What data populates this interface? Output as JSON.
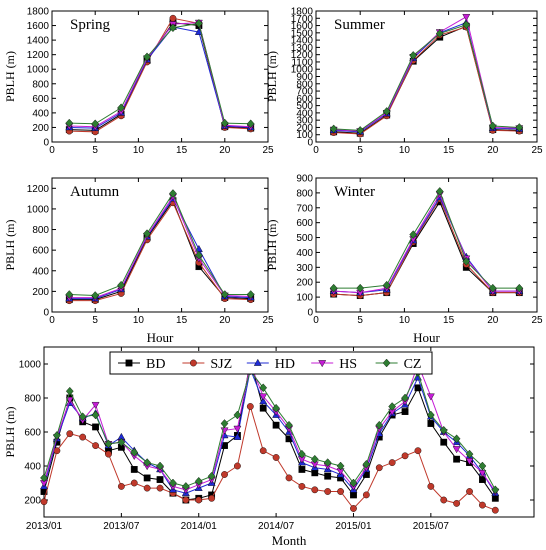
{
  "series_styles": [
    {
      "name": "BD",
      "color": "#000000",
      "marker": "square"
    },
    {
      "name": "SJZ",
      "color": "#c0392b",
      "marker": "circle"
    },
    {
      "name": "HD",
      "color": "#1f2bd6",
      "marker": "triangle-up"
    },
    {
      "name": "HS",
      "color": "#c51cd6",
      "marker": "triangle-down"
    },
    {
      "name": "CZ",
      "color": "#2e7d32",
      "marker": "diamond"
    }
  ],
  "chart_data": [
    {
      "type": "line",
      "title": "Spring",
      "ylabel": "PBLH (m)",
      "xlabel": "",
      "xlim": [
        0,
        25
      ],
      "ylim": [
        0,
        1800
      ],
      "xticks": [
        0,
        5,
        10,
        15,
        20,
        25
      ],
      "yticks": [
        0,
        200,
        400,
        600,
        800,
        1000,
        1200,
        1400,
        1600,
        1800
      ],
      "x": [
        2,
        5,
        8,
        11,
        14,
        17,
        20,
        23
      ],
      "series": [
        {
          "name": "BD",
          "values": [
            170,
            160,
            380,
            1120,
            1640,
            1600,
            210,
            190
          ]
        },
        {
          "name": "SJZ",
          "values": [
            150,
            140,
            360,
            1100,
            1700,
            1630,
            200,
            180
          ]
        },
        {
          "name": "HD",
          "values": [
            200,
            190,
            400,
            1130,
            1580,
            1510,
            220,
            200
          ]
        },
        {
          "name": "HS",
          "values": [
            220,
            210,
            420,
            1150,
            1620,
            1640,
            230,
            210
          ]
        },
        {
          "name": "CZ",
          "values": [
            260,
            250,
            470,
            1170,
            1570,
            1630,
            260,
            250
          ]
        }
      ]
    },
    {
      "type": "line",
      "title": "Summer",
      "ylabel": "PBLH (m)",
      "xlabel": "",
      "xlim": [
        0,
        25
      ],
      "ylim": [
        0,
        1800
      ],
      "xticks": [
        0,
        5,
        10,
        15,
        20,
        25
      ],
      "yticks": [
        0,
        100,
        200,
        300,
        400,
        500,
        600,
        700,
        800,
        900,
        1000,
        1100,
        1200,
        1300,
        1400,
        1500,
        1600,
        1700,
        1800
      ],
      "x": [
        2,
        5,
        8,
        11,
        14,
        17,
        20,
        23
      ],
      "series": [
        {
          "name": "BD",
          "values": [
            140,
            120,
            370,
            1110,
            1440,
            1590,
            170,
            160
          ]
        },
        {
          "name": "SJZ",
          "values": [
            130,
            110,
            360,
            1120,
            1470,
            1580,
            160,
            150
          ]
        },
        {
          "name": "HD",
          "values": [
            160,
            140,
            390,
            1150,
            1500,
            1640,
            190,
            180
          ]
        },
        {
          "name": "HS",
          "values": [
            170,
            150,
            400,
            1170,
            1510,
            1720,
            200,
            190
          ]
        },
        {
          "name": "CZ",
          "values": [
            180,
            160,
            420,
            1190,
            1490,
            1610,
            220,
            200
          ]
        }
      ]
    },
    {
      "type": "line",
      "title": "Autumn",
      "ylabel": "PBLH (m)",
      "xlabel": "Hour",
      "xlim": [
        0,
        25
      ],
      "ylim": [
        0,
        1300
      ],
      "xticks": [
        0,
        5,
        10,
        15,
        20,
        25
      ],
      "yticks": [
        0,
        200,
        400,
        600,
        800,
        1000,
        1200
      ],
      "x": [
        2,
        5,
        8,
        11,
        14,
        17,
        20,
        23
      ],
      "series": [
        {
          "name": "BD",
          "values": [
            120,
            120,
            200,
            720,
            1080,
            440,
            140,
            130
          ]
        },
        {
          "name": "SJZ",
          "values": [
            110,
            110,
            180,
            700,
            1060,
            480,
            130,
            120
          ]
        },
        {
          "name": "HD",
          "values": [
            130,
            130,
            220,
            730,
            1100,
            610,
            150,
            140
          ]
        },
        {
          "name": "HS",
          "values": [
            140,
            140,
            230,
            740,
            1120,
            520,
            160,
            150
          ]
        },
        {
          "name": "CZ",
          "values": [
            170,
            160,
            260,
            760,
            1150,
            550,
            170,
            170
          ]
        }
      ]
    },
    {
      "type": "line",
      "title": "Winter",
      "ylabel": "PBLH (m)",
      "xlabel": "Hour",
      "xlim": [
        0,
        25
      ],
      "ylim": [
        0,
        900
      ],
      "xticks": [
        0,
        5,
        10,
        15,
        20,
        25
      ],
      "yticks": [
        0,
        100,
        200,
        300,
        400,
        500,
        600,
        700,
        800,
        900
      ],
      "x": [
        2,
        5,
        8,
        11,
        14,
        17,
        20,
        23
      ],
      "series": [
        {
          "name": "BD",
          "values": [
            120,
            110,
            130,
            460,
            740,
            300,
            130,
            130
          ]
        },
        {
          "name": "SJZ",
          "values": [
            120,
            110,
            130,
            470,
            760,
            320,
            130,
            130
          ]
        },
        {
          "name": "HD",
          "values": [
            140,
            130,
            150,
            480,
            770,
            370,
            140,
            140
          ]
        },
        {
          "name": "HS",
          "values": [
            140,
            130,
            160,
            490,
            790,
            360,
            140,
            140
          ]
        },
        {
          "name": "CZ",
          "values": [
            160,
            160,
            180,
            520,
            810,
            340,
            160,
            160
          ]
        }
      ]
    },
    {
      "type": "line",
      "title": "",
      "ylabel": "PBLH (m)",
      "xlabel": "Month",
      "xlim": [
        0,
        38
      ],
      "ylim": [
        100,
        1100
      ],
      "xticks": [
        0,
        6,
        12,
        18,
        24,
        30
      ],
      "xticklabels": [
        "2013/01",
        "2013/07",
        "2014/01",
        "2014/07",
        "2015/01",
        "2015/07"
      ],
      "yticks": [
        200,
        400,
        600,
        800,
        1000
      ],
      "legend": [
        "BD",
        "SJZ",
        "HD",
        "HS",
        "CZ"
      ],
      "legend_position": "top",
      "x": [
        0,
        1,
        2,
        3,
        4,
        5,
        6,
        7,
        8,
        9,
        10,
        11,
        12,
        13,
        14,
        15,
        16,
        17,
        18,
        19,
        20,
        21,
        22,
        23,
        24,
        25,
        26,
        27,
        28,
        29,
        30,
        31,
        32,
        33,
        34,
        35
      ],
      "series": [
        {
          "name": "BD",
          "values": [
            250,
            540,
            800,
            660,
            630,
            490,
            510,
            380,
            330,
            320,
            240,
            200,
            210,
            230,
            520,
            580,
            1020,
            740,
            640,
            560,
            380,
            360,
            340,
            330,
            230,
            350,
            570,
            700,
            720,
            860,
            650,
            540,
            440,
            420,
            320,
            210
          ]
        },
        {
          "name": "SJZ",
          "values": [
            190,
            490,
            590,
            570,
            520,
            470,
            280,
            300,
            270,
            270,
            240,
            200,
            200,
            210,
            350,
            400,
            750,
            490,
            450,
            330,
            280,
            260,
            250,
            250,
            150,
            230,
            390,
            420,
            460,
            490,
            280,
            200,
            180,
            250,
            170,
            140
          ]
        },
        {
          "name": "HD",
          "values": [
            280,
            560,
            770,
            680,
            710,
            520,
            570,
            490,
            420,
            380,
            260,
            240,
            270,
            300,
            580,
            570,
            970,
            780,
            700,
            600,
            420,
            390,
            380,
            350,
            260,
            380,
            590,
            710,
            760,
            920,
            690,
            600,
            540,
            460,
            360,
            240
          ]
        },
        {
          "name": "HS",
          "values": [
            300,
            570,
            790,
            670,
            760,
            530,
            540,
            460,
            400,
            380,
            280,
            260,
            290,
            320,
            610,
            620,
            1000,
            810,
            720,
            620,
            440,
            410,
            400,
            370,
            280,
            390,
            620,
            720,
            780,
            1000,
            810,
            600,
            500,
            430,
            360,
            250
          ]
        },
        {
          "name": "CZ",
          "values": [
            330,
            580,
            840,
            690,
            700,
            530,
            540,
            480,
            420,
            400,
            300,
            280,
            310,
            340,
            650,
            700,
            960,
            860,
            740,
            640,
            470,
            440,
            420,
            400,
            300,
            410,
            640,
            750,
            800,
            950,
            700,
            610,
            560,
            470,
            400,
            260
          ]
        }
      ]
    }
  ]
}
